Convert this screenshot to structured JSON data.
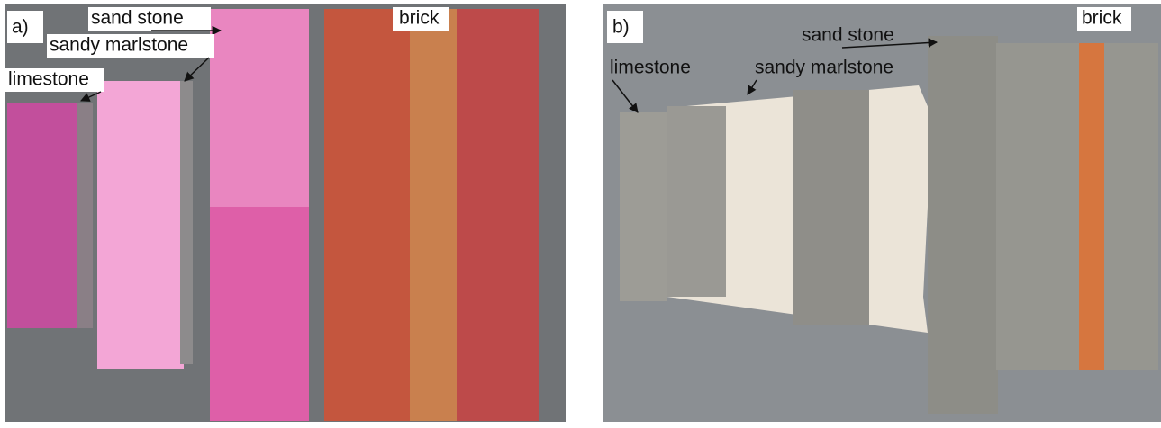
{
  "panels": [
    {
      "label": "a)",
      "annotations": {
        "sand_stone": "sand stone",
        "sandy_marlstone": "sandy marlstone",
        "limestone": "limestone",
        "brick": "brick"
      }
    },
    {
      "label": "b)",
      "annotations": {
        "sand_stone": "sand stone",
        "sandy_marlstone": "sandy marlstone",
        "limestone": "limestone",
        "brick": "brick"
      }
    }
  ]
}
